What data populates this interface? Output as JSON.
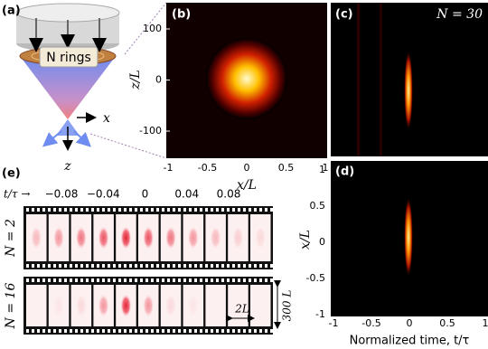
{
  "panels": {
    "a": {
      "label": "(a)",
      "rings": "N rings",
      "x_axis": "x",
      "z_axis": "z"
    },
    "b": {
      "label": "(b)",
      "y_label": "z/L",
      "x_label": "x/L",
      "yticks": [
        "100",
        "0",
        "-100"
      ],
      "xticks": [
        "-1",
        "-0.5",
        "0",
        "0.5",
        "1"
      ]
    },
    "c": {
      "label": "(c)",
      "annotation": "N = 30"
    },
    "d": {
      "label": "(d)",
      "y_label": "x/L",
      "x_label": "Normalized time, t/τ",
      "yticks": [
        "1",
        "0.5",
        "0",
        "-0.5",
        "-1"
      ],
      "xticks": [
        "-1",
        "-0.5",
        "0",
        "0.5",
        "1"
      ]
    },
    "e": {
      "label": "(e)",
      "time_label": "t/τ →",
      "times": [
        "−0.08",
        "−0.04",
        "0",
        "0.04",
        "0.08"
      ],
      "rows": [
        "N = 2",
        "N = 16"
      ],
      "width_label": "2L",
      "height_label": "300 L"
    }
  }
}
